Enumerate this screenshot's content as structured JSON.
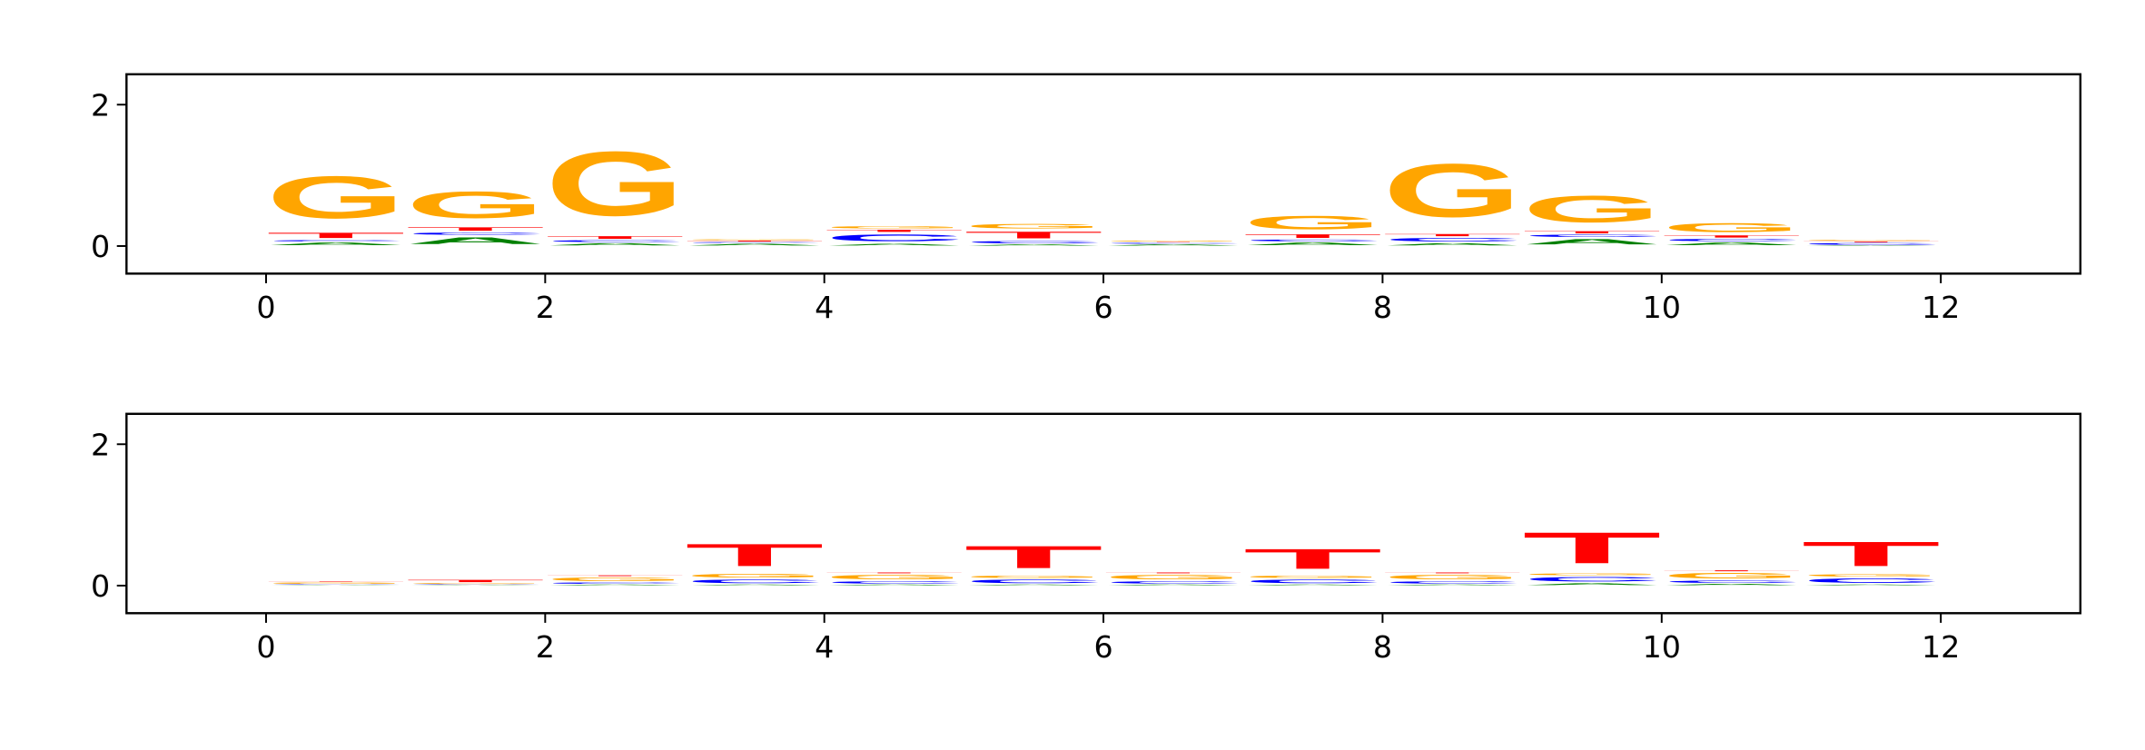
{
  "chart_data": [
    {
      "type": "logo",
      "x": [
        0,
        1,
        2,
        3,
        4,
        5,
        6,
        7,
        8,
        9,
        10,
        11
      ],
      "xlim": [
        -1,
        13
      ],
      "xticks": [
        0,
        2,
        4,
        6,
        8,
        10,
        12
      ],
      "ylim": [
        -0.39,
        2.43
      ],
      "yticks": [
        0,
        2
      ],
      "series": [
        {
          "name": "A",
          "color": "#008000",
          "values": [
            0.06,
            0.15,
            0.05,
            0.04,
            0.04,
            0.03,
            0.03,
            0.06,
            0.05,
            0.12,
            0.06,
            0.01
          ]
        },
        {
          "name": "C",
          "color": "#0000ff",
          "values": [
            0.03,
            0.05,
            0.04,
            0.02,
            0.15,
            0.05,
            0.02,
            0.04,
            0.08,
            0.05,
            0.05,
            0.04
          ]
        },
        {
          "name": "T",
          "color": "#ff0000",
          "values": [
            0.12,
            0.08,
            0.06,
            0.02,
            0.05,
            0.15,
            0.01,
            0.08,
            0.05,
            0.05,
            0.05,
            0.02
          ]
        },
        {
          "name": "G",
          "color": "#ffa500",
          "values": [
            0.95,
            0.6,
            1.45,
            0.02,
            0.05,
            0.1,
            0.02,
            0.3,
            1.2,
            0.6,
            0.2,
            0.02
          ]
        }
      ]
    },
    {
      "type": "logo",
      "x": [
        0,
        1,
        2,
        3,
        4,
        5,
        6,
        7,
        8,
        9,
        10,
        11
      ],
      "xlim": [
        -1,
        13
      ],
      "xticks": [
        0,
        2,
        4,
        6,
        8,
        10,
        12
      ],
      "ylim": [
        -0.39,
        2.43
      ],
      "yticks": [
        0,
        2
      ],
      "series": [
        {
          "name": "A",
          "color": "#008000",
          "values": [
            0.01,
            0.01,
            0.02,
            0.02,
            0.02,
            0.02,
            0.02,
            0.02,
            0.02,
            0.04,
            0.03,
            0.02
          ]
        },
        {
          "name": "C",
          "color": "#0000ff",
          "values": [
            0.01,
            0.01,
            0.03,
            0.08,
            0.05,
            0.08,
            0.05,
            0.08,
            0.05,
            0.1,
            0.05,
            0.1
          ]
        },
        {
          "name": "G",
          "color": "#ffa500",
          "values": [
            0.03,
            0.02,
            0.08,
            0.08,
            0.1,
            0.05,
            0.1,
            0.05,
            0.1,
            0.04,
            0.12,
            0.05
          ]
        },
        {
          "name": "T",
          "color": "#ff0000",
          "values": [
            0.01,
            0.05,
            0.02,
            0.5,
            0.02,
            0.5,
            0.02,
            0.45,
            0.02,
            0.7,
            0.02,
            0.55
          ]
        }
      ]
    }
  ]
}
